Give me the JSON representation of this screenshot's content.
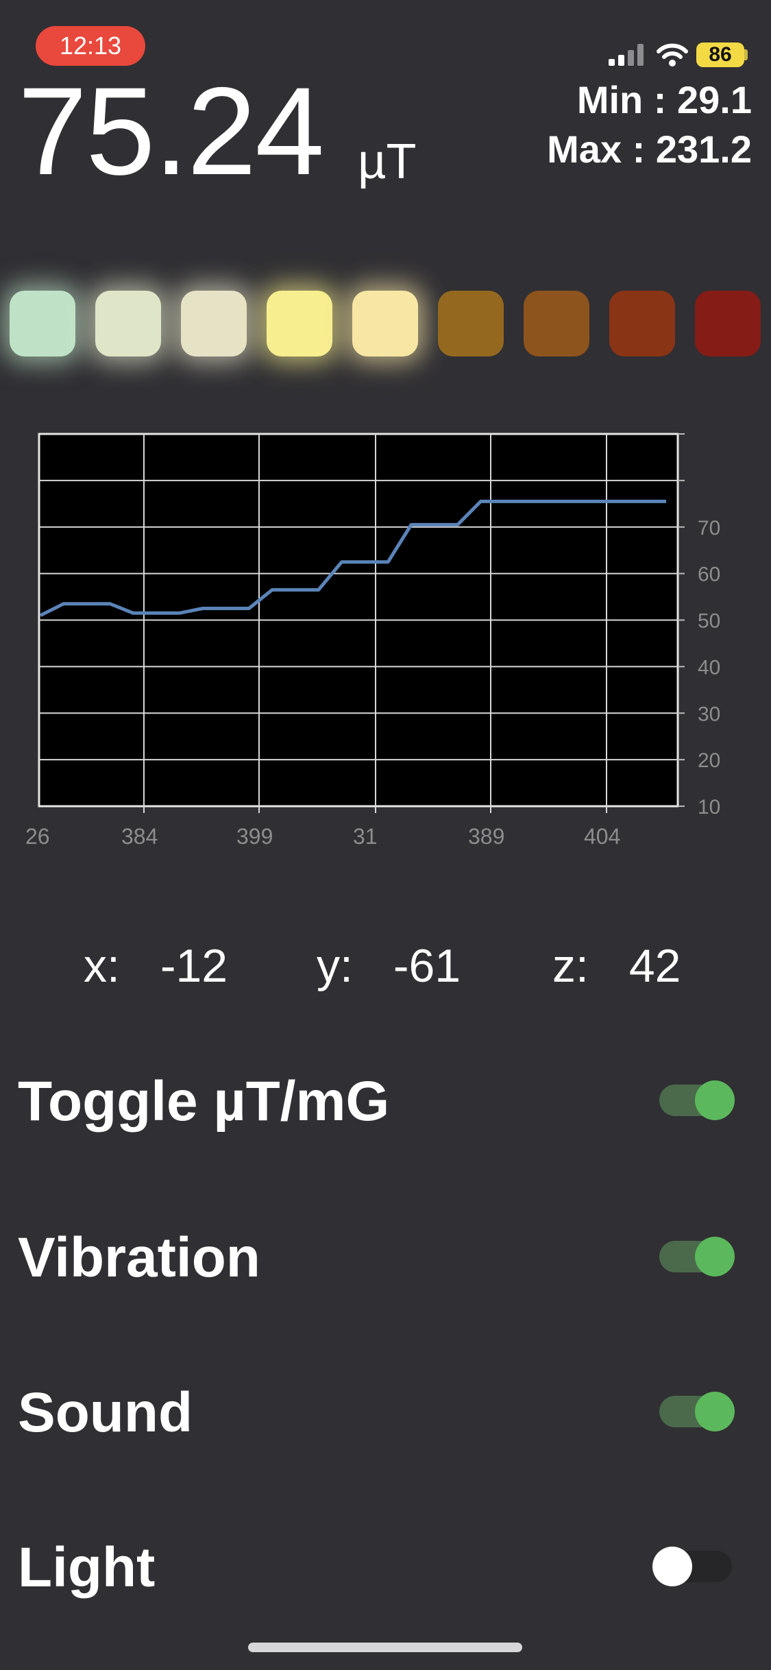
{
  "status_bar": {
    "time": "12:13",
    "battery": "86"
  },
  "reading": {
    "value": "75.24",
    "unit": "µT"
  },
  "stats": {
    "min": "Min : 29.1",
    "max": "Max : 231.2"
  },
  "level_lights": [
    {
      "color": "#bfe2c6",
      "lit": true
    },
    {
      "color": "#dfe6c8",
      "lit": true
    },
    {
      "color": "#e6e2c6",
      "lit": true
    },
    {
      "color": "#f7ee8f",
      "lit": true
    },
    {
      "color": "#f8e6a5",
      "lit": true
    },
    {
      "color": "#94691f",
      "lit": false
    },
    {
      "color": "#8e541d",
      "lit": false
    },
    {
      "color": "#8a3416",
      "lit": false
    },
    {
      "color": "#861c16",
      "lit": false
    }
  ],
  "chart_data": {
    "type": "line",
    "x_tick_labels": [
      "26",
      "384",
      "399",
      "31",
      "389",
      "404"
    ],
    "y_ticks": [
      10,
      20,
      30,
      40,
      50,
      60,
      70
    ],
    "ylim": [
      10,
      90
    ],
    "grid": true,
    "series": [
      {
        "color": "#5b84b8",
        "values": [
          51,
          53.5,
          53.5,
          53.5,
          51.5,
          51.5,
          51.5,
          52.5,
          52.5,
          52.5,
          56.5,
          56.5,
          56.5,
          62.5,
          62.5,
          62.5,
          70.5,
          70.5,
          70.5,
          75.5,
          75.5,
          75.5,
          75.5,
          75.5,
          75.5,
          75.5,
          75.5,
          75.5
        ]
      }
    ]
  },
  "axes": {
    "x": {
      "label": "x:",
      "value": "-12"
    },
    "y": {
      "label": "y:",
      "value": "-61"
    },
    "z": {
      "label": "z:",
      "value": "42"
    }
  },
  "toggles": [
    {
      "label": "Toggle µT/mG",
      "on": true
    },
    {
      "label": "Vibration",
      "on": true
    },
    {
      "label": "Sound",
      "on": true
    },
    {
      "label": "Light",
      "on": false
    }
  ],
  "colors": {
    "switch_on_knob": "#5cb85c",
    "switch_on_track": "#4a6a4b",
    "switch_off_track": "#262628"
  }
}
